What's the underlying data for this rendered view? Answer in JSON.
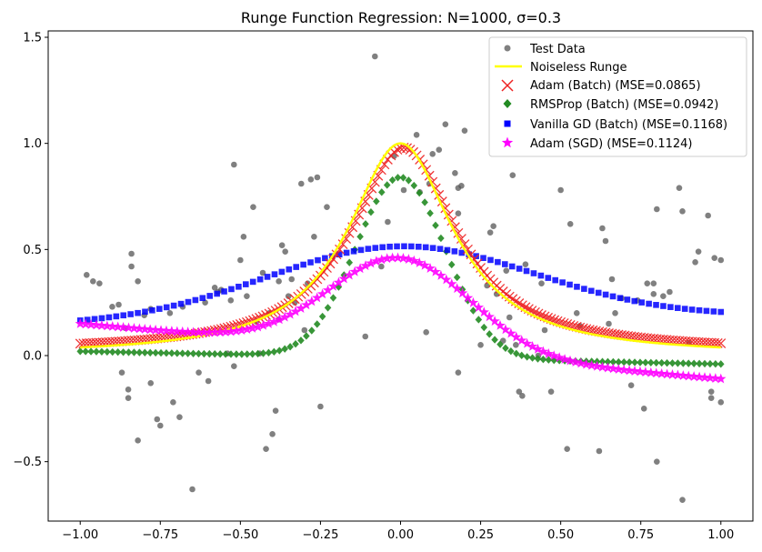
{
  "chart_data": {
    "type": "scatter",
    "title": "Runge Function Regression: N=1000, σ=0.3",
    "xlabel": "",
    "ylabel": "",
    "xlim": [
      -1.1,
      1.1
    ],
    "ylim": [
      -0.78,
      1.53
    ],
    "xticks": [
      -1.0,
      -0.75,
      -0.5,
      -0.25,
      0.0,
      0.25,
      0.5,
      0.75,
      1.0
    ],
    "xtick_labels": [
      "−1.00",
      "−0.75",
      "−0.50",
      "−0.25",
      "0.00",
      "0.25",
      "0.50",
      "0.75",
      "1.00"
    ],
    "yticks": [
      -0.5,
      0.0,
      0.5,
      1.0,
      1.5
    ],
    "ytick_labels": [
      "−0.5",
      "0.0",
      "0.5",
      "1.0",
      "1.5"
    ],
    "legend_position": "top-right",
    "runge": {
      "a": 25,
      "x_range": [
        -1,
        1
      ]
    },
    "series": [
      {
        "name": "Test Data",
        "kind": "scatter",
        "marker": "circle",
        "color": "#555555",
        "points": [
          [
            -0.98,
            0.38
          ],
          [
            -0.96,
            0.35
          ],
          [
            -0.94,
            0.34
          ],
          [
            -0.9,
            0.23
          ],
          [
            -0.88,
            0.24
          ],
          [
            -0.87,
            -0.08
          ],
          [
            -0.86,
            0.13
          ],
          [
            -0.85,
            -0.2
          ],
          [
            -0.85,
            -0.16
          ],
          [
            -0.84,
            0.48
          ],
          [
            -0.84,
            0.42
          ],
          [
            -0.82,
            0.35
          ],
          [
            -0.82,
            -0.4
          ],
          [
            -0.8,
            0.19
          ],
          [
            -0.78,
            -0.13
          ],
          [
            -0.78,
            0.22
          ],
          [
            -0.76,
            -0.3
          ],
          [
            -0.75,
            -0.33
          ],
          [
            -0.72,
            0.2
          ],
          [
            -0.71,
            -0.22
          ],
          [
            -0.69,
            -0.29
          ],
          [
            -0.68,
            0.23
          ],
          [
            -0.65,
            -0.63
          ],
          [
            -0.63,
            -0.08
          ],
          [
            -0.61,
            0.25
          ],
          [
            -0.6,
            -0.12
          ],
          [
            -0.58,
            0.32
          ],
          [
            -0.57,
            0.3
          ],
          [
            -0.56,
            0.31
          ],
          [
            -0.54,
            0.01
          ],
          [
            -0.53,
            0.26
          ],
          [
            -0.52,
            0.9
          ],
          [
            -0.52,
            -0.05
          ],
          [
            -0.5,
            0.45
          ],
          [
            -0.49,
            0.56
          ],
          [
            -0.48,
            0.28
          ],
          [
            -0.46,
            0.7
          ],
          [
            -0.45,
            0.16
          ],
          [
            -0.44,
            0.01
          ],
          [
            -0.43,
            0.39
          ],
          [
            -0.42,
            -0.44
          ],
          [
            -0.41,
            0.2
          ],
          [
            -0.4,
            -0.37
          ],
          [
            -0.39,
            -0.26
          ],
          [
            -0.38,
            0.17
          ],
          [
            -0.38,
            0.35
          ],
          [
            -0.37,
            0.52
          ],
          [
            -0.36,
            0.49
          ],
          [
            -0.35,
            0.28
          ],
          [
            -0.34,
            0.36
          ],
          [
            -0.33,
            0.25
          ],
          [
            -0.31,
            0.81
          ],
          [
            -0.3,
            0.12
          ],
          [
            -0.29,
            0.34
          ],
          [
            -0.28,
            0.83
          ],
          [
            -0.27,
            0.56
          ],
          [
            -0.26,
            0.84
          ],
          [
            -0.25,
            -0.24
          ],
          [
            -0.23,
            0.7
          ],
          [
            -0.11,
            0.09
          ],
          [
            -0.08,
            1.41
          ],
          [
            -0.06,
            0.42
          ],
          [
            -0.04,
            0.63
          ],
          [
            -0.02,
            0.94
          ],
          [
            0.01,
            0.78
          ],
          [
            0.05,
            1.04
          ],
          [
            0.06,
            0.77
          ],
          [
            0.08,
            0.11
          ],
          [
            0.09,
            0.81
          ],
          [
            0.1,
            0.95
          ],
          [
            0.12,
            0.97
          ],
          [
            0.14,
            1.09
          ],
          [
            0.17,
            0.86
          ],
          [
            0.18,
            0.79
          ],
          [
            0.18,
            0.67
          ],
          [
            0.18,
            -0.08
          ],
          [
            0.19,
            0.8
          ],
          [
            0.2,
            1.06
          ],
          [
            0.25,
            0.05
          ],
          [
            0.27,
            0.33
          ],
          [
            0.28,
            0.58
          ],
          [
            0.29,
            0.61
          ],
          [
            0.3,
            0.29
          ],
          [
            0.32,
            0.07
          ],
          [
            0.33,
            0.4
          ],
          [
            0.34,
            0.18
          ],
          [
            0.35,
            0.85
          ],
          [
            0.36,
            0.05
          ],
          [
            0.37,
            -0.17
          ],
          [
            0.38,
            -0.19
          ],
          [
            0.39,
            0.43
          ],
          [
            0.43,
            0.0
          ],
          [
            0.44,
            0.34
          ],
          [
            0.45,
            0.12
          ],
          [
            0.47,
            -0.17
          ],
          [
            0.5,
            0.78
          ],
          [
            0.52,
            -0.44
          ],
          [
            0.53,
            0.62
          ],
          [
            0.55,
            0.2
          ],
          [
            0.56,
            0.14
          ],
          [
            0.62,
            -0.45
          ],
          [
            0.63,
            0.6
          ],
          [
            0.64,
            0.54
          ],
          [
            0.65,
            0.15
          ],
          [
            0.66,
            0.36
          ],
          [
            0.67,
            0.2
          ],
          [
            0.69,
            0.27
          ],
          [
            0.72,
            -0.14
          ],
          [
            0.74,
            0.26
          ],
          [
            0.76,
            -0.25
          ],
          [
            0.77,
            0.34
          ],
          [
            0.79,
            0.34
          ],
          [
            0.79,
            0.29
          ],
          [
            0.8,
            0.69
          ],
          [
            0.8,
            -0.5
          ],
          [
            0.82,
            0.28
          ],
          [
            0.84,
            0.3
          ],
          [
            0.87,
            0.79
          ],
          [
            0.88,
            0.68
          ],
          [
            0.88,
            -0.68
          ],
          [
            0.9,
            0.06
          ],
          [
            0.92,
            0.44
          ],
          [
            0.93,
            0.49
          ],
          [
            0.96,
            0.66
          ],
          [
            0.97,
            -0.2
          ],
          [
            0.97,
            -0.17
          ],
          [
            0.98,
            0.46
          ],
          [
            1.0,
            0.45
          ],
          [
            1.0,
            -0.22
          ]
        ]
      },
      {
        "name": "Noiseless Runge",
        "kind": "line",
        "color": "#ffff00"
      },
      {
        "name": "Adam (Batch)",
        "kind": "scatter",
        "marker": "x",
        "color": "#ee2222",
        "mse": 0.0865,
        "model": "runge",
        "scale": 0.96,
        "offset": 0.02,
        "x_shift": 0.01,
        "count": 201
      },
      {
        "name": "RMSProp (Batch)",
        "kind": "scatter",
        "marker": "diamond",
        "color": "#228b22",
        "mse": 0.0942,
        "model": "gauss",
        "base": -0.01,
        "peak": 0.85,
        "sigma": 0.14,
        "skew": -0.03,
        "count": 120
      },
      {
        "name": "Vanilla GD (Batch)",
        "kind": "scatter",
        "marker": "square",
        "color": "#0000ff",
        "mse": 0.1168,
        "model": "gauss",
        "base": 0.165,
        "peak": 0.35,
        "sigma": 0.42,
        "skew": 0.02,
        "count": 90
      },
      {
        "name": "Adam (SGD)",
        "kind": "scatter",
        "marker": "star",
        "color": "#ff00ff",
        "mse": 0.1124,
        "model": "gauss",
        "base": 0.02,
        "peak": 0.44,
        "sigma": 0.22,
        "skew": -0.13,
        "count": 120
      }
    ]
  },
  "legend": {
    "test_data": "Test Data",
    "runge": "Noiseless Runge",
    "adam_batch": "Adam (Batch) (MSE=0.0865)",
    "rmsprop_batch": "RMSProp (Batch) (MSE=0.0942)",
    "vanilla_gd": "Vanilla GD (Batch) (MSE=0.1168)",
    "adam_sgd": "Adam (SGD) (MSE=0.1124)"
  }
}
